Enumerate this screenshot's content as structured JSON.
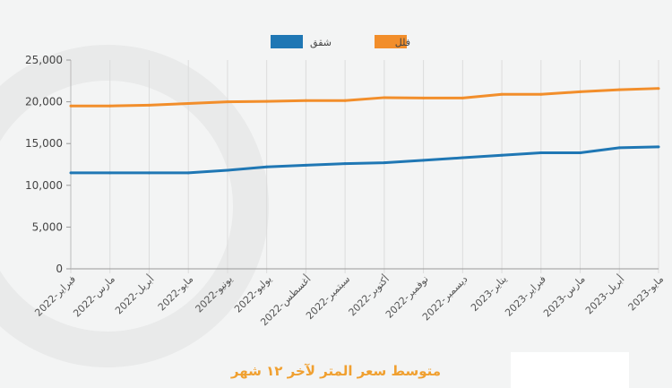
{
  "chart_data": {
    "type": "line",
    "title": "متوسط سعر المتر لآخر ١٢ شهر",
    "categories": [
      "فبراير-2022",
      "مارس-2022",
      "أبريل-2022",
      "مايو-2022",
      "يونيو-2022",
      "يوليو-2022",
      "أغسطس-2022",
      "سبتمبر-2022",
      "أكتوبر-2022",
      "نوفمبر-2022",
      "ديسمبر-2022",
      "يناير-2023",
      "فبراير-2023",
      "مارس-2023",
      "أبريل-2023",
      "مايو-2023"
    ],
    "series": [
      {
        "name": "فلل",
        "color": "#f28e2b",
        "values": [
          19500,
          19500,
          19600,
          19800,
          20000,
          20050,
          20150,
          20150,
          20500,
          20450,
          20450,
          20900,
          20900,
          21200,
          21450,
          21600
        ]
      },
      {
        "name": "شقق",
        "color": "#1f77b4",
        "values": [
          11500,
          11500,
          11500,
          11500,
          11800,
          12200,
          12400,
          12600,
          12700,
          13000,
          13300,
          13600,
          13900,
          13900,
          14500,
          14600
        ]
      }
    ],
    "ylim": [
      0,
      25000
    ],
    "yticks": [
      "0",
      "5,000",
      "10,000",
      "15,000",
      "20,000",
      "25,000"
    ],
    "ytick_values": [
      0,
      5000,
      10000,
      15000,
      20000,
      25000
    ],
    "grid": "vertical",
    "legend": "top-center",
    "xlabel": "",
    "ylabel": ""
  }
}
